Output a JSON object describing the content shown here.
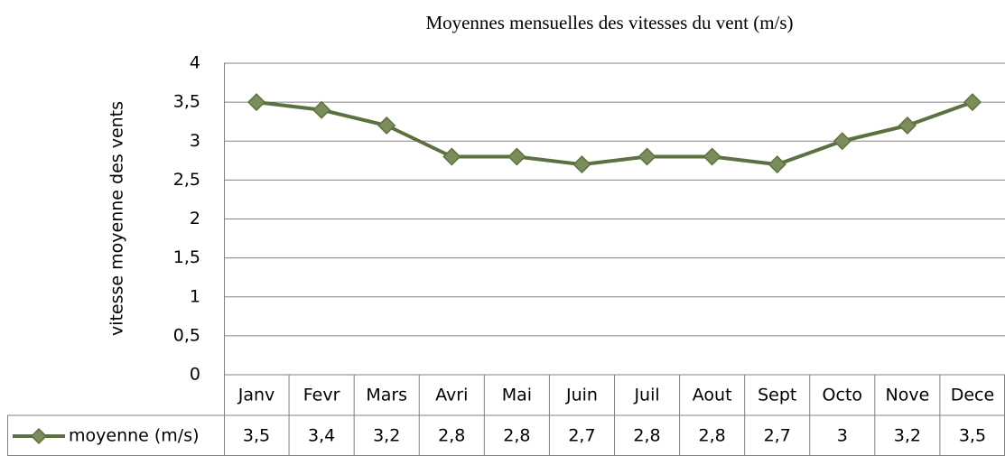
{
  "chart_data": {
    "type": "line",
    "title": "Moyennes mensuelles des vitesses du vent (m/s)",
    "y_label": "vitesse moyenne des vents",
    "categories": [
      "Janv",
      "Fevr",
      "Mars",
      "Avri",
      "Mai",
      "Juin",
      "Juil",
      "Aout",
      "Sept",
      "Octo",
      "Nove",
      "Dece"
    ],
    "series": [
      {
        "name": "moyenne (m/s)",
        "color": "#5c7040",
        "marker_color": "#7b8d5a",
        "values": [
          3.5,
          3.4,
          3.2,
          2.8,
          2.8,
          2.7,
          2.8,
          2.8,
          2.7,
          3,
          3.2,
          3.5
        ],
        "value_labels": [
          "3,5",
          "3,4",
          "3,2",
          "2,8",
          "2,8",
          "2,7",
          "2,8",
          "2,8",
          "2,7",
          "3",
          "3,2",
          "3,5"
        ]
      }
    ],
    "ylim": [
      0,
      4
    ],
    "yticks": [
      0,
      {
        "value": 0.5,
        "label": "0,5"
      },
      1,
      {
        "value": 1.5,
        "label": "1,5"
      },
      2,
      {
        "value": 2.5,
        "label": "2,5"
      },
      3,
      {
        "value": 3.5,
        "label": "3,5"
      },
      4
    ],
    "grid": true
  }
}
